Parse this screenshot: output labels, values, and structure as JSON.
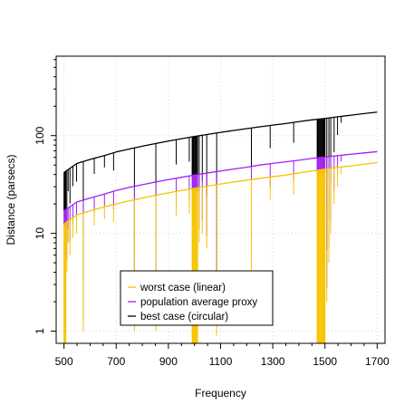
{
  "chart_data": {
    "type": "line",
    "title": "",
    "xlabel": "Frequency",
    "ylabel": "Distance (parsecs)",
    "xlim": [
      470,
      1730
    ],
    "ylim": [
      0.75,
      650
    ],
    "y_scale": "log",
    "grid": true,
    "legend_position": "bottom-center",
    "x_ticks": [
      500,
      700,
      900,
      1100,
      1300,
      1500,
      1700
    ],
    "x_tick_labels": [
      "500",
      "700",
      "900",
      "1100",
      "1300",
      "1500",
      "1700"
    ],
    "y_ticks": [
      1,
      10,
      100
    ],
    "y_tick_labels": [
      "1",
      "10",
      "100"
    ],
    "x": [
      500,
      550,
      600,
      650,
      700,
      750,
      800,
      850,
      900,
      950,
      1000,
      1050,
      1100,
      1150,
      1200,
      1250,
      1300,
      1350,
      1400,
      1450,
      1500,
      1550,
      1600,
      1650,
      1700
    ],
    "series": [
      {
        "name": "worst case (linear)",
        "color": "#f5c400",
        "values": [
          12.5,
          15.5,
          17.0,
          18.5,
          20.0,
          21.5,
          23.0,
          24.5,
          26.0,
          27.5,
          29.0,
          30.5,
          32.0,
          33.5,
          35.0,
          36.5,
          38.0,
          39.5,
          41.5,
          43.5,
          45.5,
          47.5,
          49.0,
          51.0,
          53.0
        ]
      },
      {
        "name": "population average proxy",
        "color": "#a020f0",
        "values": [
          17.0,
          21.0,
          23.0,
          25.0,
          27.5,
          29.5,
          31.5,
          33.5,
          35.5,
          37.5,
          39.5,
          41.5,
          43.5,
          45.5,
          47.5,
          50.0,
          52.0,
          54.0,
          56.0,
          58.5,
          60.5,
          62.5,
          64.5,
          66.5,
          68.5
        ]
      },
      {
        "name": "best case (circular)",
        "color": "#000000",
        "values": [
          42.0,
          52.0,
          57.0,
          62.0,
          68.0,
          73.0,
          78.0,
          83.0,
          88.0,
          93.0,
          98.0,
          103.0,
          108.0,
          113.0,
          118.0,
          123.0,
          128.0,
          133.0,
          139.0,
          145.0,
          150.0,
          156.0,
          162.0,
          168.0,
          174.0
        ]
      }
    ],
    "drops": [
      {
        "x": 500,
        "to": 0.75
      },
      {
        "x": 502,
        "to": 0.75
      },
      {
        "x": 505,
        "to": 0.75
      },
      {
        "x": 507,
        "to": 0.75
      },
      {
        "x": 511,
        "to": 4.0
      },
      {
        "x": 516,
        "to": 8.0
      },
      {
        "x": 523,
        "to": 6.0
      },
      {
        "x": 534,
        "to": 9.0
      },
      {
        "x": 548,
        "to": 10.0
      },
      {
        "x": 574,
        "to": 1.0
      },
      {
        "x": 616,
        "to": 12.0
      },
      {
        "x": 655,
        "to": 14.0
      },
      {
        "x": 690,
        "to": 13.0
      },
      {
        "x": 770,
        "to": 1.0
      },
      {
        "x": 852,
        "to": 1.0
      },
      {
        "x": 930,
        "to": 15.0
      },
      {
        "x": 980,
        "to": 16.0
      },
      {
        "x": 991,
        "to": 0.75
      },
      {
        "x": 994,
        "to": 0.75
      },
      {
        "x": 997,
        "to": 0.75
      },
      {
        "x": 1000,
        "to": 0.75
      },
      {
        "x": 1003,
        "to": 0.75
      },
      {
        "x": 1006,
        "to": 0.75
      },
      {
        "x": 1009,
        "to": 0.75
      },
      {
        "x": 1012,
        "to": 0.75
      },
      {
        "x": 1018,
        "to": 8.0
      },
      {
        "x": 1030,
        "to": 10.0
      },
      {
        "x": 1047,
        "to": 7.0
      },
      {
        "x": 1085,
        "to": 0.9
      },
      {
        "x": 1218,
        "to": 3.0
      },
      {
        "x": 1290,
        "to": 22.0
      },
      {
        "x": 1380,
        "to": 25.0
      },
      {
        "x": 1470,
        "to": 0.75
      },
      {
        "x": 1473,
        "to": 0.75
      },
      {
        "x": 1476,
        "to": 0.75
      },
      {
        "x": 1479,
        "to": 0.75
      },
      {
        "x": 1482,
        "to": 0.75
      },
      {
        "x": 1485,
        "to": 0.75
      },
      {
        "x": 1488,
        "to": 0.75
      },
      {
        "x": 1491,
        "to": 0.75
      },
      {
        "x": 1494,
        "to": 0.75
      },
      {
        "x": 1497,
        "to": 0.75
      },
      {
        "x": 1500,
        "to": 0.75
      },
      {
        "x": 1507,
        "to": 2.0
      },
      {
        "x": 1515,
        "to": 5.0
      },
      {
        "x": 1522,
        "to": 10.0
      },
      {
        "x": 1535,
        "to": 20.0
      },
      {
        "x": 1548,
        "to": 30.0
      },
      {
        "x": 1562,
        "to": 40.0
      }
    ]
  }
}
